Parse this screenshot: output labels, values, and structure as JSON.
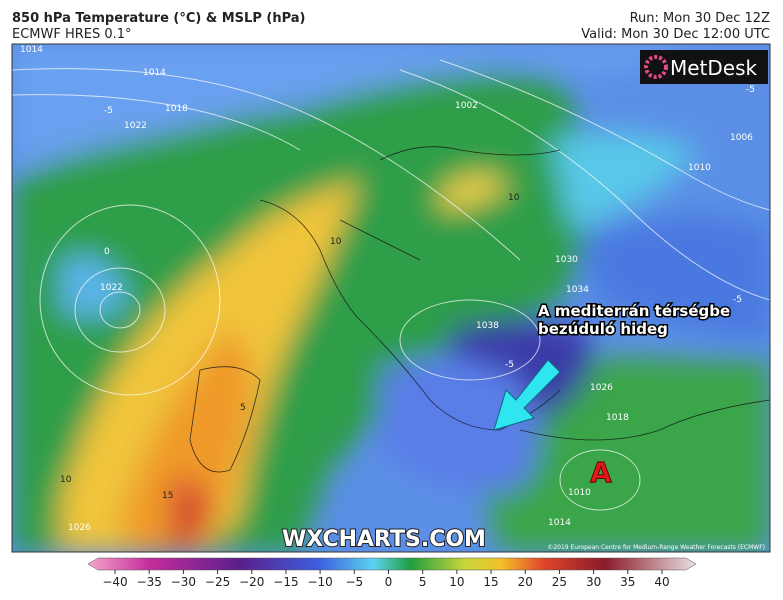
{
  "header": {
    "title": "850 hPa Temperature (°C) & MSLP (hPa)",
    "subtitle": "ECMWF HRES 0.1°",
    "run": "Run: Mon 30 Dec 12Z",
    "valid": "Valid: Mon 30 Dec 12:00 UTC"
  },
  "map": {
    "logo": "MetDesk",
    "annotation": [
      "A mediterrán térségbe",
      "bezúduló hideg"
    ],
    "anticyclone": "A",
    "watermark": "WXCHARTS.COM",
    "copyright": "©2019 European Centre for Medium-Range Weather Forecasts (ECMWF)",
    "labels": [
      "1014",
      "1014",
      "1018",
      "1022",
      "-5",
      "1002",
      "1006",
      "1010",
      "-5",
      "1030",
      "1034",
      "1038",
      "1026",
      "1018",
      "-5",
      "1022",
      "0",
      "10",
      "10",
      "15",
      "1026",
      "1010",
      "1014",
      "10",
      "5",
      "-5"
    ]
  },
  "colorbar": {
    "lim": [
      -40,
      40
    ],
    "ticks": [
      {
        "value": -40,
        "label": "−40"
      },
      {
        "value": -35,
        "label": "−35"
      },
      {
        "value": -30,
        "label": "−30"
      },
      {
        "value": -25,
        "label": "−25"
      },
      {
        "value": -20,
        "label": "−20"
      },
      {
        "value": -15,
        "label": "−15"
      },
      {
        "value": -10,
        "label": "−10"
      },
      {
        "value": -5,
        "label": "−5"
      },
      0,
      5,
      10,
      15,
      20,
      25,
      30,
      35,
      40
    ]
  }
}
